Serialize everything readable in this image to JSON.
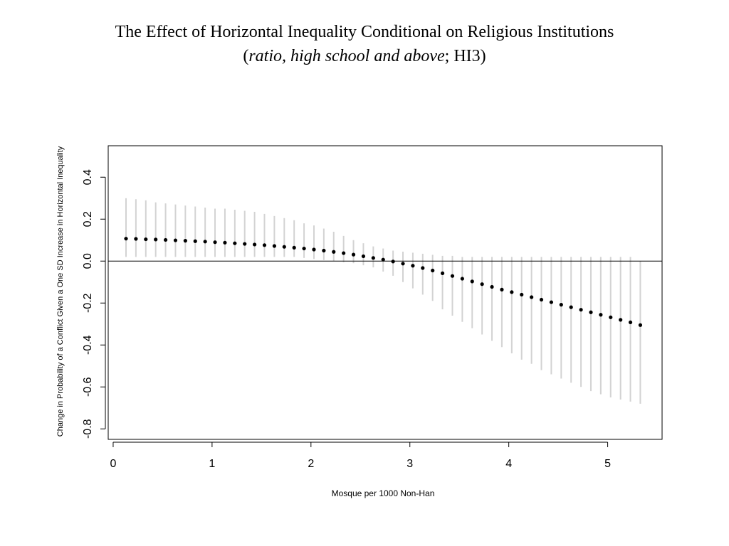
{
  "slide": {
    "title_line1": "The Effect of Horizontal Inequality Conditional on Religious Institutions",
    "title_line2_open": "(",
    "title_line2_italic": "ratio, high school and above",
    "title_line2_rest": "; HI3)"
  },
  "chart_data": {
    "type": "scatter",
    "xlabel": "Mosque per 1000 Non-Han",
    "ylabel": "Change in Probability of a Conflict Given a One SD Increase in Horizontal Inequality",
    "xlim": [
      -0.05,
      5.55
    ],
    "ylim": [
      -0.85,
      0.55
    ],
    "xticks": [
      0,
      1,
      2,
      3,
      4,
      5
    ],
    "yticks": [
      -0.8,
      -0.6,
      -0.4,
      -0.2,
      0.0,
      0.2,
      0.4
    ],
    "ytick_labels": [
      "-0.8",
      "-0.6",
      "-0.4",
      "-0.2",
      "0.0",
      "0.2",
      "0.4"
    ],
    "xtick_labels": [
      "0",
      "1",
      "2",
      "3",
      "4",
      "5"
    ],
    "reference_line_y": 0,
    "grid": false,
    "colors": {
      "points": "#000000",
      "ci": "#d3d3d3",
      "axes": "#000000"
    },
    "x": [
      0.13,
      0.23,
      0.33,
      0.43,
      0.53,
      0.63,
      0.73,
      0.83,
      0.93,
      1.03,
      1.13,
      1.23,
      1.33,
      1.43,
      1.53,
      1.63,
      1.73,
      1.83,
      1.93,
      2.03,
      2.13,
      2.23,
      2.33,
      2.43,
      2.53,
      2.63,
      2.73,
      2.83,
      2.93,
      3.03,
      3.13,
      3.23,
      3.33,
      3.43,
      3.53,
      3.63,
      3.73,
      3.83,
      3.93,
      4.03,
      4.13,
      4.23,
      4.33,
      4.43,
      4.53,
      4.63,
      4.73,
      4.83,
      4.93,
      5.03,
      5.13,
      5.23,
      5.33
    ],
    "estimate": [
      0.107,
      0.106,
      0.104,
      0.103,
      0.101,
      0.099,
      0.097,
      0.095,
      0.093,
      0.09,
      0.088,
      0.085,
      0.082,
      0.079,
      0.076,
      0.072,
      0.068,
      0.064,
      0.06,
      0.055,
      0.05,
      0.044,
      0.038,
      0.031,
      0.023,
      0.015,
      0.007,
      -0.002,
      -0.012,
      -0.022,
      -0.033,
      -0.045,
      -0.058,
      -0.071,
      -0.084,
      -0.097,
      -0.11,
      -0.123,
      -0.136,
      -0.148,
      -0.16,
      -0.172,
      -0.184,
      -0.196,
      -0.208,
      -0.22,
      -0.232,
      -0.244,
      -0.256,
      -0.268,
      -0.28,
      -0.292,
      -0.305
    ],
    "ci_lower": [
      0.02,
      0.02,
      0.02,
      0.02,
      0.02,
      0.02,
      0.02,
      0.02,
      0.02,
      0.02,
      0.02,
      0.02,
      0.02,
      0.02,
      0.02,
      0.02,
      0.02,
      0.02,
      0.015,
      0.01,
      0.005,
      0.0,
      -0.005,
      -0.01,
      -0.02,
      -0.03,
      -0.05,
      -0.07,
      -0.1,
      -0.13,
      -0.16,
      -0.19,
      -0.23,
      -0.26,
      -0.29,
      -0.32,
      -0.35,
      -0.38,
      -0.41,
      -0.44,
      -0.47,
      -0.49,
      -0.52,
      -0.54,
      -0.56,
      -0.58,
      -0.6,
      -0.62,
      -0.635,
      -0.65,
      -0.66,
      -0.67,
      -0.68
    ],
    "ci_upper": [
      0.3,
      0.295,
      0.29,
      0.28,
      0.275,
      0.27,
      0.265,
      0.26,
      0.255,
      0.25,
      0.25,
      0.245,
      0.24,
      0.235,
      0.225,
      0.215,
      0.205,
      0.195,
      0.18,
      0.17,
      0.155,
      0.14,
      0.12,
      0.1,
      0.085,
      0.07,
      0.06,
      0.05,
      0.045,
      0.04,
      0.035,
      0.03,
      0.025,
      0.025,
      0.02,
      0.02,
      0.02,
      0.02,
      0.02,
      0.02,
      0.02,
      0.02,
      0.02,
      0.02,
      0.02,
      0.02,
      0.02,
      0.02,
      0.02,
      0.02,
      0.02,
      0.02,
      0.0
    ]
  }
}
